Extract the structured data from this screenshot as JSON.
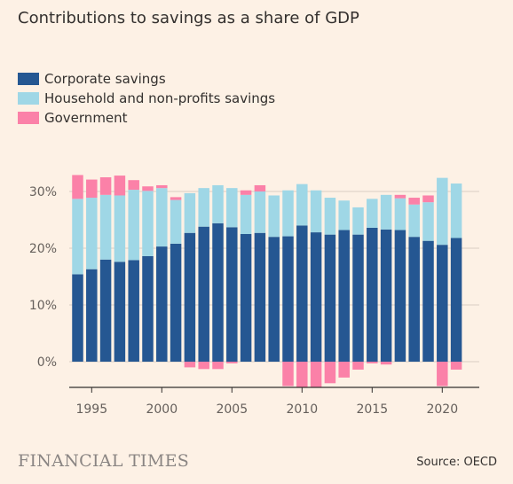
{
  "title": "Contributions to savings as a share of GDP",
  "source": "Source: OECD",
  "brand": "FINANCIAL TIMES",
  "colors": {
    "corporate": "#255792",
    "household": "#9fd7e6",
    "government": "#fb81a8",
    "grid": "#d9cdc2",
    "axis": "#33302e",
    "text": "#66605c"
  },
  "chart_data": {
    "type": "bar",
    "stacked": true,
    "x": [
      1994,
      1995,
      1996,
      1997,
      1998,
      1999,
      2000,
      2001,
      2002,
      2003,
      2004,
      2005,
      2006,
      2007,
      2008,
      2009,
      2010,
      2011,
      2012,
      2013,
      2014,
      2015,
      2016,
      2017,
      2018,
      2019,
      2020,
      2021
    ],
    "series": [
      {
        "name": "Corporate savings",
        "color": "#255792",
        "values": [
          15.4,
          16.3,
          18.0,
          17.6,
          17.9,
          18.6,
          20.3,
          20.8,
          22.7,
          23.8,
          24.4,
          23.7,
          22.5,
          22.7,
          22.0,
          22.1,
          24.0,
          22.8,
          22.4,
          23.2,
          22.4,
          23.6,
          23.3,
          23.2,
          22.0,
          21.3,
          20.6,
          21.8
        ]
      },
      {
        "name": "Household and non-profits savings",
        "color": "#9fd7e6",
        "values": [
          13.3,
          12.6,
          11.4,
          11.7,
          12.4,
          11.5,
          10.3,
          7.7,
          7.0,
          6.8,
          6.7,
          6.9,
          6.9,
          7.3,
          7.3,
          8.1,
          7.3,
          7.4,
          6.5,
          5.2,
          4.8,
          5.1,
          6.1,
          5.6,
          5.7,
          6.8,
          11.8,
          9.6
        ]
      },
      {
        "name": "Government",
        "color": "#fb81a8",
        "values": [
          4.2,
          3.2,
          3.1,
          3.5,
          1.7,
          0.8,
          0.5,
          0.5,
          -1.0,
          -1.3,
          -1.3,
          -0.3,
          0.8,
          1.1,
          0,
          -4.3,
          -4.6,
          -4.6,
          -3.8,
          -2.8,
          -1.4,
          -0.3,
          -0.5,
          0.6,
          1.2,
          1.2,
          -4.3,
          -1.4
        ]
      }
    ],
    "yticks": [
      0,
      10,
      20,
      30
    ],
    "ytick_labels": [
      "0%",
      "10%",
      "20%",
      "30%"
    ],
    "xticks": [
      1995,
      2000,
      2005,
      2010,
      2015,
      2020
    ],
    "ylim": [
      -5,
      33
    ],
    "grid": true,
    "legend_position": "top-left"
  }
}
